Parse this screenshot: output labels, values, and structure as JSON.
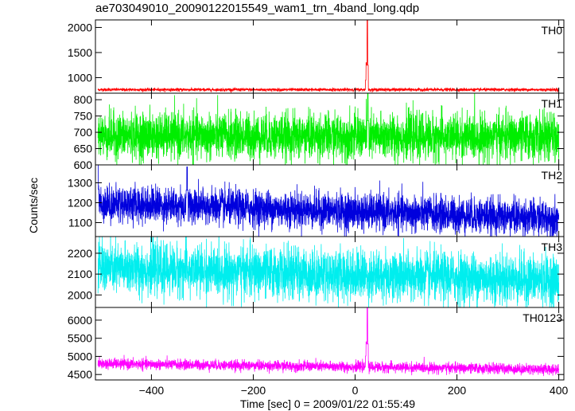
{
  "title": "ae703049010_20090122015549_wam1_trn_4band_long.qdp",
  "chart_data": {
    "type": "line",
    "title": "ae703049010_20090122015549_wam1_trn_4band_long.qdp",
    "xlabel": "Time [sec] 0 = 2009/01/22 01:55:49",
    "ylabel": "Counts/sec",
    "xlim": [
      -510,
      410
    ],
    "xticks": [
      -400,
      -200,
      0,
      200,
      400
    ],
    "x_tick_labels": [
      "−400",
      "−200",
      "0",
      "200",
      "400"
    ],
    "grid": false,
    "panels": [
      {
        "name": "TH0",
        "color": "#ff0000",
        "ylim": [
          690,
          2150
        ],
        "yticks": [
          1000,
          1500,
          2000
        ],
        "baseline": 760,
        "noise": 15,
        "trend": 0,
        "peaks": [
          {
            "x": 24,
            "y": 2150
          },
          {
            "x": 22,
            "y": 1300
          }
        ]
      },
      {
        "name": "TH1",
        "color": "#00ee00",
        "ylim": [
          600,
          820
        ],
        "yticks": [
          600,
          650,
          700,
          750,
          800
        ],
        "baseline": 690,
        "noise": 35,
        "trend": -5,
        "peaks": [
          {
            "x": 25,
            "y": 820
          }
        ]
      },
      {
        "name": "TH2",
        "color": "#0000dd",
        "ylim": [
          1030,
          1390
        ],
        "yticks": [
          1100,
          1200,
          1300
        ],
        "baseline": 1200,
        "noise": 45,
        "trend": -80,
        "peaks": [
          {
            "x": -505,
            "y": 1390
          },
          {
            "x": -330,
            "y": 1380
          }
        ]
      },
      {
        "name": "TH3",
        "color": "#00eeee",
        "ylim": [
          1940,
          2280
        ],
        "yticks": [
          2000,
          2100,
          2200
        ],
        "baseline": 2130,
        "noise": 60,
        "trend": -60,
        "peaks": []
      },
      {
        "name": "TH0123",
        "color": "#ff00ff",
        "ylim": [
          4350,
          6350
        ],
        "yticks": [
          4500,
          5000,
          5500,
          6000
        ],
        "baseline": 4800,
        "noise": 70,
        "trend": -160,
        "peaks": [
          {
            "x": 24,
            "y": 6350
          },
          {
            "x": 22,
            "y": 5400
          }
        ]
      }
    ]
  }
}
